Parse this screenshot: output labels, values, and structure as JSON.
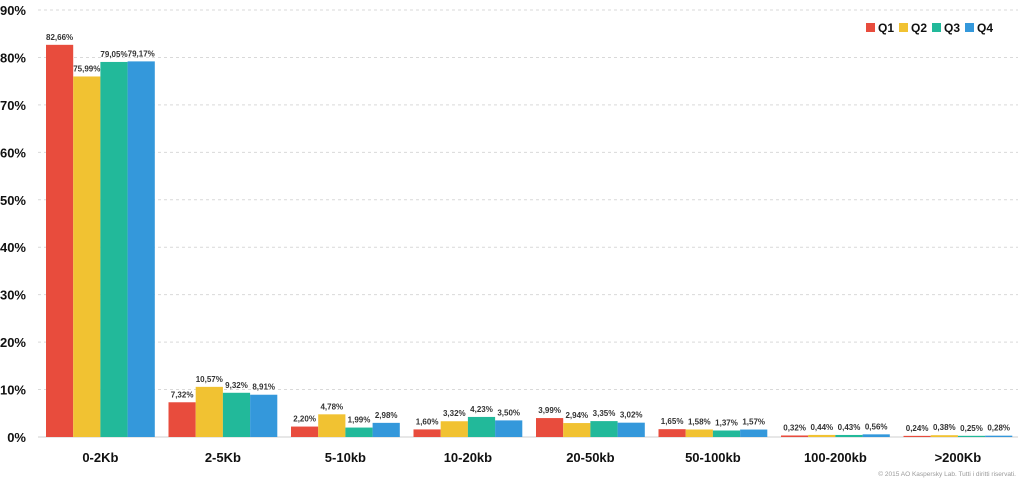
{
  "chart_data": {
    "type": "bar",
    "categories": [
      "0-2Kb",
      "2-5Kb",
      "5-10kb",
      "10-20kb",
      "20-50kb",
      "50-100kb",
      "100-200kb",
      ">200Kb"
    ],
    "series": [
      {
        "name": "Q1",
        "color": "#e84c3d",
        "values": [
          82.66,
          7.32,
          2.2,
          1.6,
          3.99,
          1.65,
          0.32,
          0.24
        ],
        "labels": [
          "82,66%",
          "7,32%",
          "2,20%",
          "1,60%",
          "3,99%",
          "1,65%",
          "0,32%",
          "0,24%"
        ]
      },
      {
        "name": "Q2",
        "color": "#f1c232",
        "values": [
          75.99,
          10.57,
          4.78,
          3.32,
          2.94,
          1.58,
          0.44,
          0.38
        ],
        "labels": [
          "75,99%",
          "10,57%",
          "4,78%",
          "3,32%",
          "2,94%",
          "1,58%",
          "0,44%",
          "0,38%"
        ]
      },
      {
        "name": "Q3",
        "color": "#22b99a",
        "values": [
          79.05,
          9.32,
          1.99,
          4.23,
          3.35,
          1.37,
          0.43,
          0.25
        ],
        "labels": [
          "79,05%",
          "9,32%",
          "1,99%",
          "4,23%",
          "3,35%",
          "1,37%",
          "0,43%",
          "0,25%"
        ]
      },
      {
        "name": "Q4",
        "color": "#3498db",
        "values": [
          79.17,
          8.91,
          2.98,
          3.5,
          3.02,
          1.57,
          0.56,
          0.28
        ],
        "labels": [
          "79,17%",
          "8,91%",
          "2,98%",
          "3,50%",
          "3,02%",
          "1,57%",
          "0,56%",
          "0,28%"
        ]
      }
    ],
    "yticks": [
      0,
      10,
      20,
      30,
      40,
      50,
      60,
      70,
      80,
      90
    ],
    "ytick_labels": [
      "0%",
      "10%",
      "20%",
      "30%",
      "40%",
      "50%",
      "60%",
      "70%",
      "80%",
      "90%"
    ],
    "ylim": [
      0,
      90
    ],
    "grid": true,
    "legend": "top-right",
    "title": "",
    "xlabel": "",
    "ylabel": ""
  },
  "footer": {
    "copyright": "© 2015 AO Kaspersky Lab. Tutti i diritti riservati."
  }
}
